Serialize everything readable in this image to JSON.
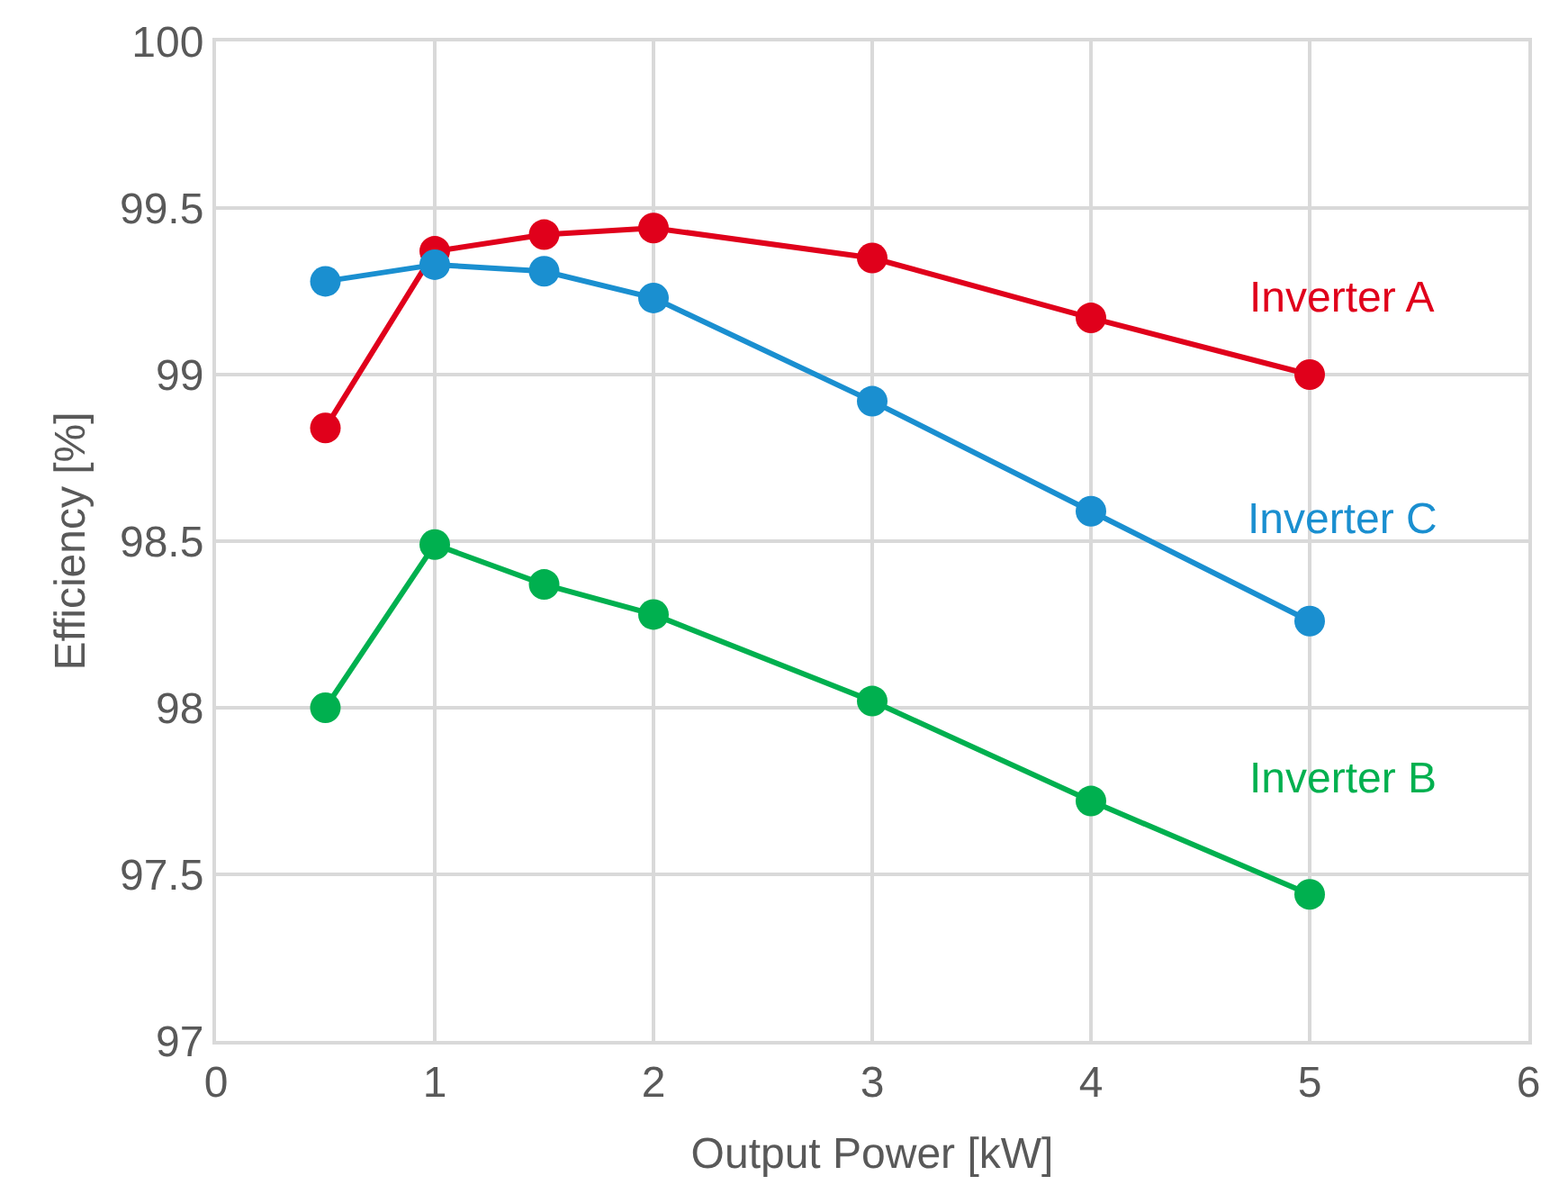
{
  "chart_data": {
    "type": "line",
    "xlabel": "Output Power [kW]",
    "ylabel": "Efficiency [%]",
    "x": [
      0.5,
      1,
      1.5,
      2,
      3,
      4,
      5
    ],
    "series": [
      {
        "name": "Inverter A",
        "color": "#e0001b",
        "values": [
          98.84,
          99.37,
          99.42,
          99.44,
          99.35,
          99.17,
          99.0
        ]
      },
      {
        "name": "Inverter C",
        "color": "#1a8fd0",
        "values": [
          99.28,
          99.33,
          99.31,
          99.23,
          98.92,
          98.59,
          98.26
        ]
      },
      {
        "name": "Inverter B",
        "color": "#00b04f",
        "values": [
          98.0,
          98.49,
          98.37,
          98.28,
          98.02,
          97.72,
          97.44
        ]
      }
    ],
    "xlim": [
      0,
      6
    ],
    "xticks": [
      0,
      1,
      2,
      3,
      4,
      5,
      6
    ],
    "ylim": [
      97,
      100
    ],
    "yticks": [
      97,
      97.5,
      98,
      98.5,
      99,
      99.5,
      100
    ],
    "grid": true,
    "legend": false,
    "marker": "circle",
    "line_style": "solid"
  }
}
